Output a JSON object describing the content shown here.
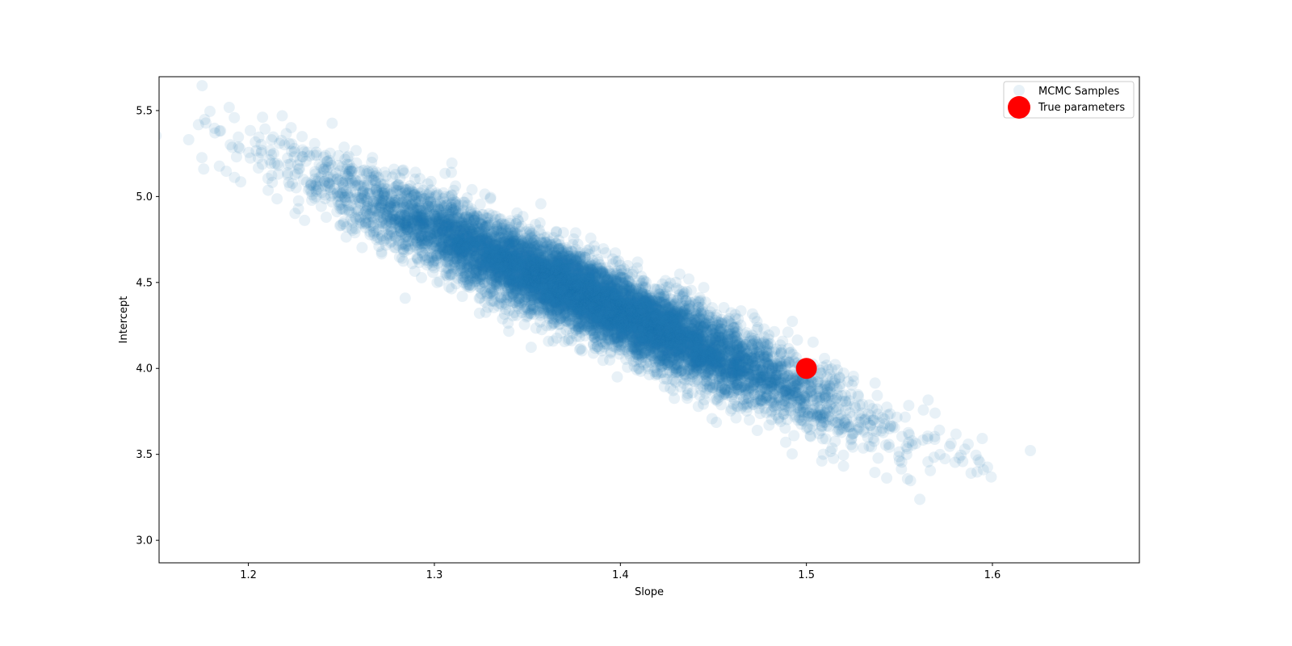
{
  "chart_data": {
    "type": "scatter",
    "title": "",
    "xlabel": "Slope",
    "ylabel": "Intercept",
    "xlim": [
      1.152,
      1.679
    ],
    "ylim": [
      2.869,
      5.697
    ],
    "xticks": [
      "1.2",
      "1.3",
      "1.4",
      "1.5",
      "1.6"
    ],
    "yticks": [
      "3.0",
      "3.5",
      "4.0",
      "4.5",
      "5.0",
      "5.5"
    ],
    "grid": false,
    "legend_position": "top-right",
    "series": [
      {
        "name": "MCMC Samples",
        "color": "#1f77b4",
        "alpha": 0.1,
        "distribution": {
          "mean": [
            1.385,
            4.4
          ],
          "std": [
            0.065,
            0.33
          ],
          "correlation": -0.94,
          "count": 9000
        }
      },
      {
        "name": "True parameters",
        "color": "#ff0000",
        "points": [
          [
            1.5,
            4.0
          ]
        ]
      }
    ]
  }
}
